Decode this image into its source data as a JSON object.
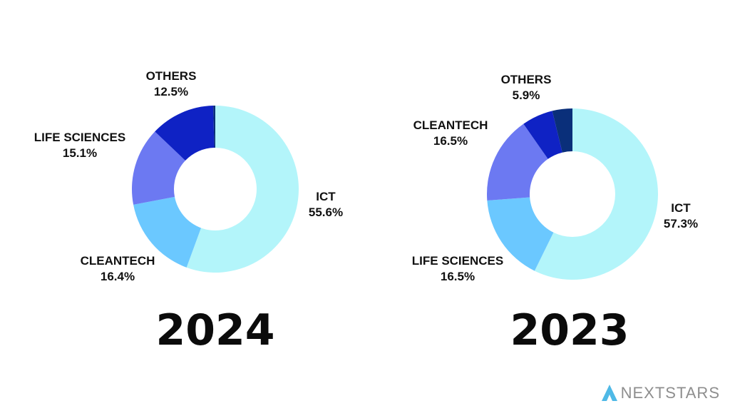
{
  "chart_data": [
    {
      "type": "pie",
      "title": "2024",
      "slices": [
        {
          "label": "ICT",
          "value": 55.6,
          "display": "55.6%",
          "color": "#b3f5fa"
        },
        {
          "label": "CLEANTECH",
          "value": 16.4,
          "display": "16.4%",
          "color": "#6bc8ff"
        },
        {
          "label": "LIFE SCIENCES",
          "value": 15.1,
          "display": "15.1%",
          "color": "#6c79f2"
        },
        {
          "label": "OTHERS",
          "value": 12.5,
          "display": "12.5%",
          "color": "#0f22c4"
        },
        {
          "label": "",
          "value": 0.4,
          "display": "",
          "color": "#0a2f7a"
        }
      ]
    },
    {
      "type": "pie",
      "title": "2023",
      "slices": [
        {
          "label": "ICT",
          "value": 57.3,
          "display": "57.3%",
          "color": "#b3f5fa"
        },
        {
          "label": "LIFE SCIENCES",
          "value": 16.5,
          "display": "16.5%",
          "color": "#6bc8ff"
        },
        {
          "label": "CLEANTECH",
          "value": 16.5,
          "display": "16.5%",
          "color": "#6c79f2"
        },
        {
          "label": "OTHERS",
          "value": 5.9,
          "display": "5.9%",
          "color": "#0f22c4"
        },
        {
          "label": "",
          "value": 3.8,
          "display": "",
          "color": "#0a2f7a"
        }
      ]
    }
  ],
  "brand": {
    "name": "NEXTSTARS",
    "icon": "nextstars-logo-icon",
    "color": "#8e8e8e",
    "icon_color": "#4fb9e6"
  }
}
